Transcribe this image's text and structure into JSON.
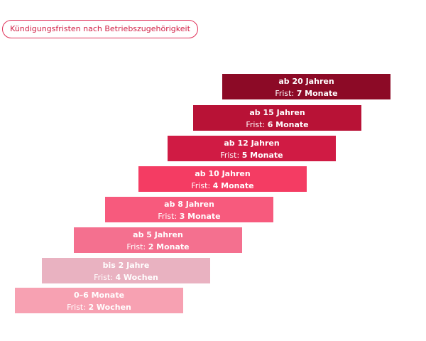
{
  "title": "Kündigungsfristen nach Betriebszugehörigkeit",
  "frist_label": "Frist:",
  "colors": {
    "accent": "#e0325a"
  },
  "steps": [
    {
      "label": "0–6 Monate",
      "period": "2 Wochen",
      "color": "#f7a1b2"
    },
    {
      "label": "bis 2 Jahre",
      "period": "4 Wochen",
      "color": "#e9b2c1"
    },
    {
      "label": "ab 5 Jahren",
      "period": "2 Monate",
      "color": "#f4708f"
    },
    {
      "label": "ab 8 Jahren",
      "period": "3 Monate",
      "color": "#f75a7d"
    },
    {
      "label": "ab 10 Jahren",
      "period": "4 Monate",
      "color": "#f43c63"
    },
    {
      "label": "ab 12 Jahren",
      "period": "5 Monate",
      "color": "#d01b44"
    },
    {
      "label": "ab 15 Jahren",
      "period": "6 Monate",
      "color": "#b81236"
    },
    {
      "label": "ab 20 Jahren",
      "period": "7 Monate",
      "color": "#8c0a26"
    }
  ]
}
